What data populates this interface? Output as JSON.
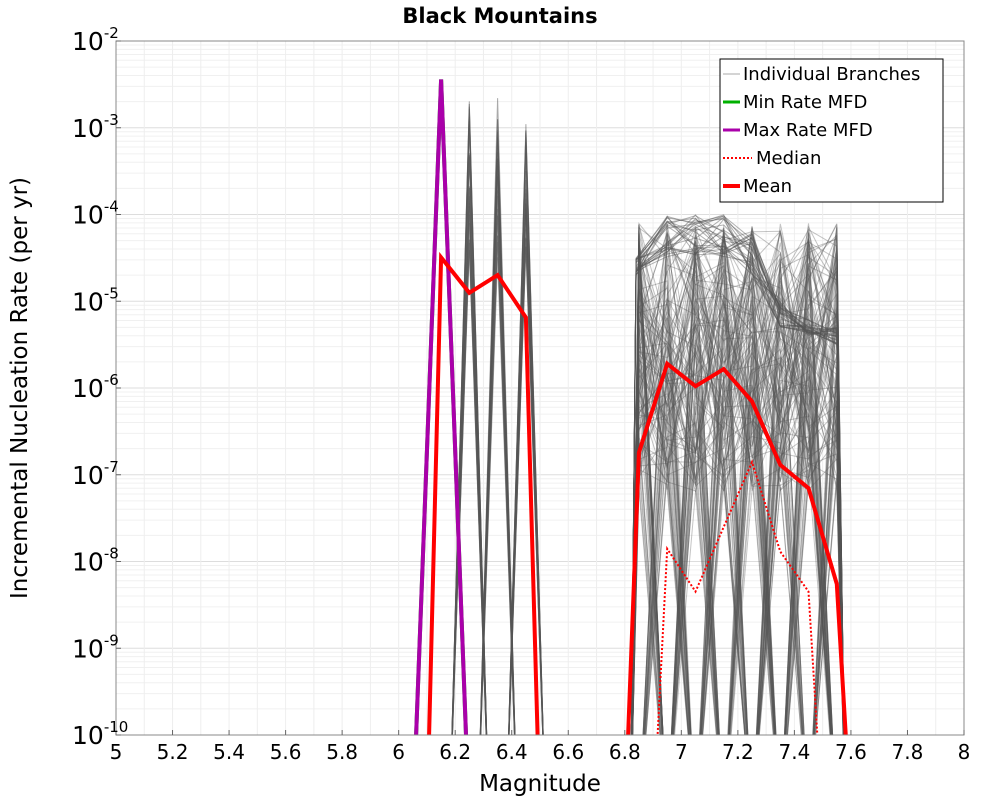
{
  "chart_data": {
    "type": "line",
    "title": "Black Mountains",
    "xlabel": "Magnitude",
    "ylabel": "Incremental Nucleation Rate (per yr)",
    "xlim": [
      5,
      8
    ],
    "ylim": [
      1e-10,
      0.01
    ],
    "yscale": "log",
    "grid": true,
    "x_ticks": [
      "5",
      "5.2",
      "5.4",
      "5.6",
      "5.8",
      "6",
      "6.2",
      "6.4",
      "6.6",
      "6.8",
      "7",
      "7.2",
      "7.4",
      "7.6",
      "7.8",
      "8"
    ],
    "y_ticks": [
      {
        "base": "10",
        "exp": "-2"
      },
      {
        "base": "10",
        "exp": "-3"
      },
      {
        "base": "10",
        "exp": "-4"
      },
      {
        "base": "10",
        "exp": "-5"
      },
      {
        "base": "10",
        "exp": "-6"
      },
      {
        "base": "10",
        "exp": "-7"
      },
      {
        "base": "10",
        "exp": "-8"
      },
      {
        "base": "10",
        "exp": "-9"
      },
      {
        "base": "10",
        "exp": "-10"
      }
    ],
    "legend": {
      "position": "top-right",
      "entries": [
        "Individual Branches",
        "Min Rate MFD",
        "Max Rate MFD",
        "Median",
        "Mean"
      ]
    },
    "series": [
      {
        "name": "Individual Branches",
        "color": "#555555",
        "note": "hundreds of logic-tree branches; peaks up to ~2.4e-3 near M6.2-6.45 and ~1e-4 near M6.95-7.55"
      },
      {
        "name": "Min Rate MFD",
        "color": "#00b000",
        "x": [
          6.05,
          6.15,
          6.25
        ],
        "values": [
          1e-11,
          0.0036,
          1e-11
        ]
      },
      {
        "name": "Max Rate MFD",
        "color": "#aa00aa",
        "x": [
          6.05,
          6.15,
          6.25
        ],
        "values": [
          1e-11,
          0.0036,
          1e-11
        ]
      },
      {
        "name": "Median",
        "color": "#ff0000",
        "style": "dotted",
        "x": [
          6.9,
          6.95,
          7.05,
          7.15,
          7.25,
          7.35,
          7.45,
          7.5
        ],
        "values": [
          1e-11,
          1.4e-08,
          4.5e-09,
          2.5e-08,
          1.4e-07,
          1.3e-08,
          4.5e-09,
          1e-11
        ]
      },
      {
        "name": "Mean",
        "color": "#ff0000",
        "x": [
          6.1,
          6.15,
          6.25,
          6.35,
          6.45,
          6.5,
          6.8,
          6.85,
          6.95,
          7.05,
          7.15,
          7.25,
          7.35,
          7.45,
          7.55,
          7.6
        ],
        "values": [
          1e-11,
          3.2e-05,
          1.25e-05,
          2e-05,
          6.5e-06,
          1e-11,
          1e-11,
          1.8e-07,
          1.9e-06,
          1.05e-06,
          1.65e-06,
          7e-07,
          1.3e-07,
          7e-08,
          5.5e-09,
          1e-11
        ]
      }
    ]
  }
}
